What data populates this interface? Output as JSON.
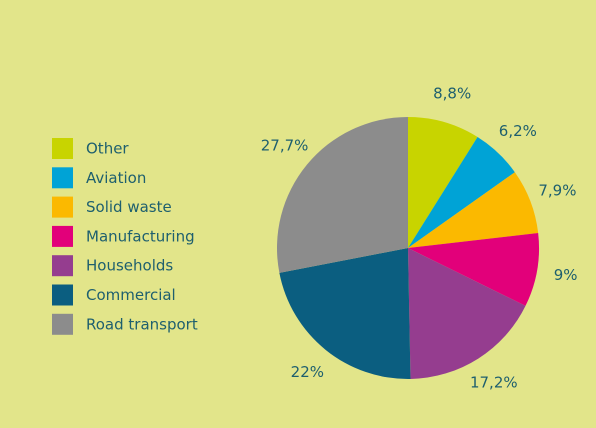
{
  "chart_data": {
    "type": "pie",
    "categories": [
      "Other",
      "Aviation",
      "Solid waste",
      "Manufacturing",
      "Households",
      "Commercial",
      "Road transport"
    ],
    "values": [
      8.8,
      6.2,
      7.9,
      9,
      17.2,
      22,
      27.7
    ],
    "value_labels": [
      "8,8%",
      "6,2%",
      "7,9%",
      "9%",
      "17,2%",
      "22%",
      "27,7%"
    ],
    "colors": [
      "#c8d400",
      "#00a3d6",
      "#fbb900",
      "#e2007a",
      "#953d8f",
      "#0b5e80",
      "#8c8c8c"
    ],
    "legend": "left"
  }
}
